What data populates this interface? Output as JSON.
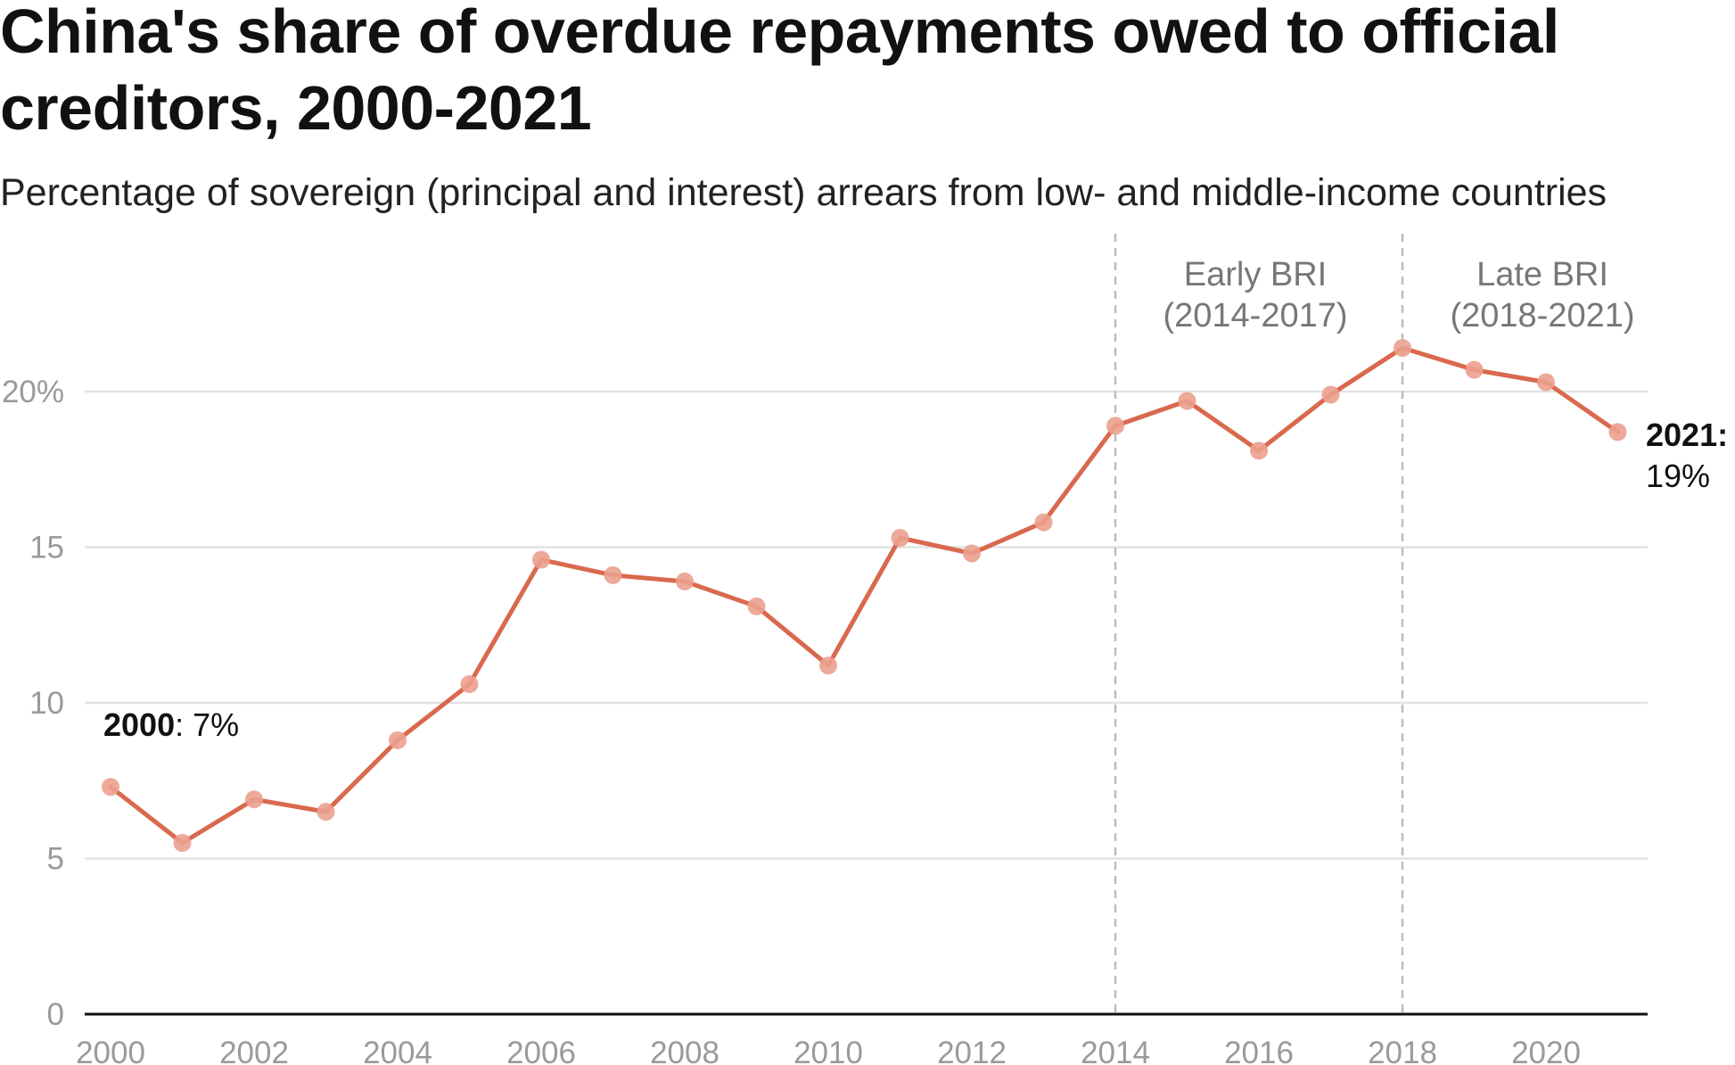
{
  "header": {
    "title": "China's share of overdue repayments owed to official creditors, 2000-2021",
    "subtitle": "Percentage of sovereign (principal and interest) arrears from low- and middle-income countries"
  },
  "colors": {
    "line": "#d9694e",
    "marker": "#eba08e",
    "grid": "#e3e3e3",
    "axis": "#111111",
    "divider": "#bdbdbd",
    "tick_text": "#9a9a9a",
    "period_text": "#777777"
  },
  "chart_data": {
    "type": "line",
    "title": "China's share of overdue repayments owed to official creditors, 2000-2021",
    "subtitle": "Percentage of sovereign (principal and interest) arrears from low- and middle-income countries",
    "x": [
      2000,
      2001,
      2002,
      2003,
      2004,
      2005,
      2006,
      2007,
      2008,
      2009,
      2010,
      2011,
      2012,
      2013,
      2014,
      2015,
      2016,
      2017,
      2018,
      2019,
      2020,
      2021
    ],
    "series": [
      {
        "values": [
          7.3,
          5.5,
          6.9,
          6.5,
          8.8,
          10.6,
          14.6,
          14.1,
          13.9,
          13.1,
          11.2,
          15.3,
          14.8,
          15.8,
          18.9,
          19.7,
          18.1,
          19.9,
          21.4,
          20.7,
          20.3,
          18.7
        ]
      }
    ],
    "ylim": [
      0,
      22
    ],
    "xlim": [
      2000,
      2021
    ],
    "y_ticks": [
      {
        "value": 0,
        "label": "0"
      },
      {
        "value": 5,
        "label": "5"
      },
      {
        "value": 10,
        "label": "10"
      },
      {
        "value": 15,
        "label": "15"
      },
      {
        "value": 20,
        "label": "20%"
      }
    ],
    "x_ticks": [
      {
        "value": 2000,
        "label": "2000"
      },
      {
        "value": 2002,
        "label": "2002"
      },
      {
        "value": 2004,
        "label": "2004"
      },
      {
        "value": 2006,
        "label": "2006"
      },
      {
        "value": 2008,
        "label": "2008"
      },
      {
        "value": 2010,
        "label": "2010"
      },
      {
        "value": 2012,
        "label": "2012"
      },
      {
        "value": 2014,
        "label": "2014"
      },
      {
        "value": 2016,
        "label": "2016"
      },
      {
        "value": 2018,
        "label": "2018"
      },
      {
        "value": 2020,
        "label": "2020"
      }
    ],
    "grid": true,
    "legend": "none",
    "dividers": [
      {
        "x": 2014,
        "label_line1": "Early BRI",
        "label_line2": "(2014-2017)",
        "label_center_x": 2016
      },
      {
        "x": 2018,
        "label_line1": "Late BRI",
        "label_line2": "(2018-2021)",
        "label_center_x": 2020
      }
    ],
    "annotations": [
      {
        "x": 2000,
        "bold": "2000",
        "text": ": 7%"
      },
      {
        "x": 2021,
        "bold": "2021:",
        "text": "19%"
      }
    ]
  }
}
